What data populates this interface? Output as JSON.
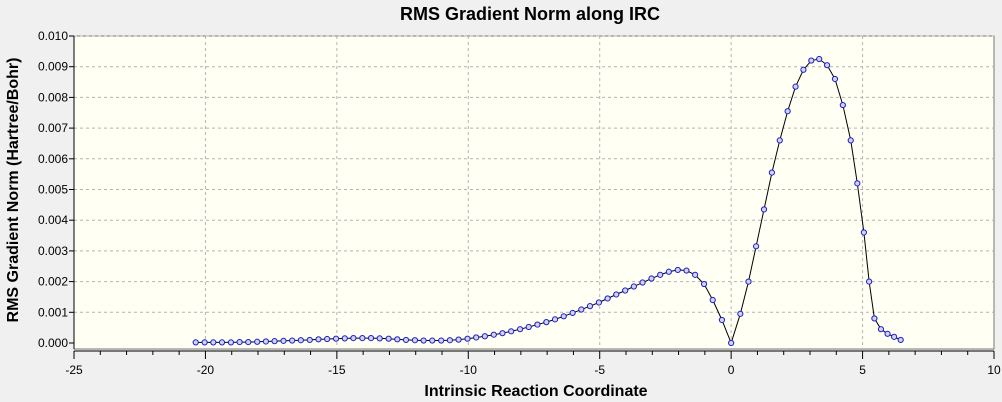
{
  "chart_data": {
    "type": "line",
    "title": "RMS Gradient Norm along IRC",
    "xlabel": "Intrinsic Reaction Coordinate",
    "ylabel": "RMS Gradient Norm (Hartree/Bohr)",
    "xlim": [
      -25,
      10
    ],
    "ylim": [
      0,
      0.01
    ],
    "grid": true,
    "xticks": [
      -25,
      -20,
      -15,
      -10,
      -5,
      0,
      5,
      10
    ],
    "yticks": [
      0.0,
      0.001,
      0.002,
      0.003,
      0.004,
      0.005,
      0.006,
      0.007,
      0.008,
      0.009,
      0.01
    ],
    "xtick_labels": [
      "-25",
      "-20",
      "-15",
      "-10",
      "-5",
      "0",
      "5",
      "10"
    ],
    "ytick_labels": [
      "0.000",
      "0.001",
      "0.002",
      "0.003",
      "0.004",
      "0.005",
      "0.006",
      "0.007",
      "0.008",
      "0.009",
      "0.010"
    ],
    "colors": {
      "plot_bg": "#fffff4",
      "line": "#000000",
      "marker_fill": "#cfd3ff",
      "marker_stroke": "#1f1fbf",
      "grid": "#b4b4b4"
    },
    "series": [
      {
        "x": [
          -20.37,
          -20.03,
          -19.7,
          -19.37,
          -19.03,
          -18.7,
          -18.37,
          -18.03,
          -17.7,
          -17.37,
          -17.03,
          -16.7,
          -16.37,
          -16.03,
          -15.7,
          -15.37,
          -15.03,
          -14.7,
          -14.37,
          -14.03,
          -13.7,
          -13.37,
          -13.03,
          -12.7,
          -12.37,
          -12.03,
          -11.7,
          -11.37,
          -11.03,
          -10.7,
          -10.37,
          -10.03,
          -9.7,
          -9.37,
          -9.03,
          -8.7,
          -8.37,
          -8.03,
          -7.7,
          -7.37,
          -7.03,
          -6.7,
          -6.37,
          -6.03,
          -5.7,
          -5.37,
          -5.03,
          -4.7,
          -4.37,
          -4.03,
          -3.7,
          -3.37,
          -3.03,
          -2.7,
          -2.37,
          -2.03,
          -1.7,
          -1.37,
          -1.03,
          -0.7,
          -0.35,
          0.0,
          0.35,
          0.66,
          0.95,
          1.25,
          1.55,
          1.85,
          2.15,
          2.45,
          2.75,
          3.05,
          3.35,
          3.65,
          3.95,
          4.25,
          4.55,
          4.8,
          5.05,
          5.25,
          5.45,
          5.7,
          5.95,
          6.2,
          6.45
        ],
        "values": [
          2e-05,
          2e-05,
          2e-05,
          2e-05,
          2e-05,
          3e-05,
          3e-05,
          4e-05,
          5e-05,
          6e-05,
          7e-05,
          8e-05,
          9e-05,
          0.0001,
          0.00012,
          0.00013,
          0.00014,
          0.00015,
          0.00016,
          0.00016,
          0.00016,
          0.00015,
          0.00014,
          0.00012,
          0.0001,
          9e-05,
          8e-05,
          8e-05,
          8e-05,
          9e-05,
          0.00011,
          0.00014,
          0.00018,
          0.00022,
          0.00027,
          0.00032,
          0.00038,
          0.00045,
          0.00052,
          0.0006,
          0.00068,
          0.00077,
          0.00087,
          0.00098,
          0.00109,
          0.0012,
          0.00132,
          0.00145,
          0.00158,
          0.00171,
          0.00184,
          0.00197,
          0.0021,
          0.00222,
          0.00232,
          0.00238,
          0.00236,
          0.00222,
          0.00192,
          0.0014,
          0.00075,
          0.0,
          0.00095,
          0.002,
          0.00315,
          0.00435,
          0.00555,
          0.0066,
          0.00755,
          0.00835,
          0.0089,
          0.0092,
          0.00925,
          0.00905,
          0.0086,
          0.00775,
          0.0066,
          0.0052,
          0.0036,
          0.002,
          0.0008,
          0.00045,
          0.0003,
          0.0002,
          0.0001
        ]
      }
    ]
  }
}
